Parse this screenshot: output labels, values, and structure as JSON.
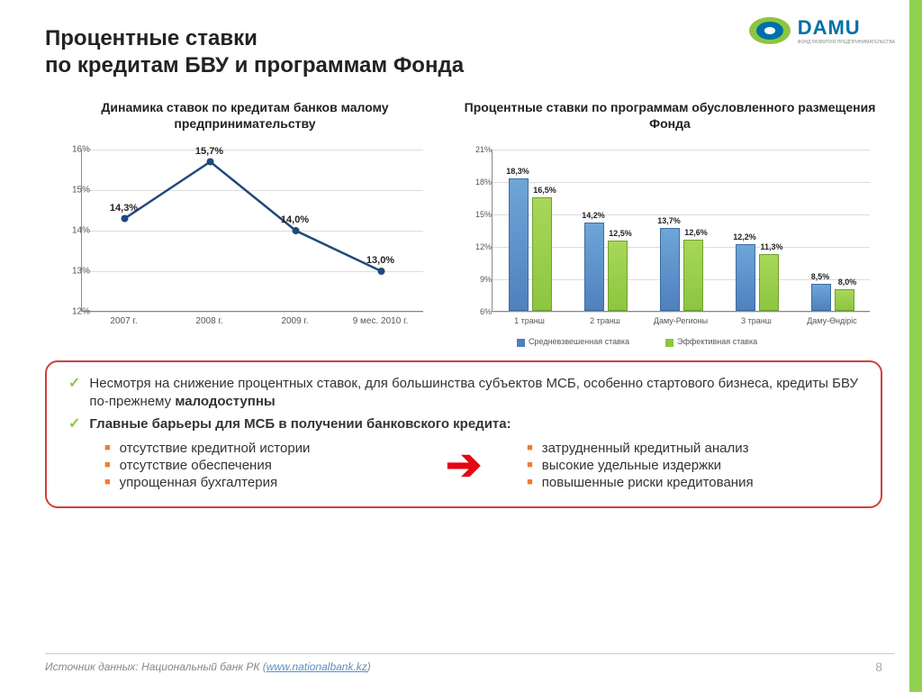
{
  "brand": "DAMU",
  "brand_sub": "ФОНД РАЗВИТИЯ ПРЕДПРИНИМАТЕЛЬСТВА",
  "title_l1": "Процентные ставки",
  "title_l2": "по кредитам БВУ и программам Фонда",
  "line_chart": {
    "title": "Динамика ставок по кредитам банков малому предпринимательству",
    "ymin": 12,
    "ymax": 16,
    "yticks": [
      "12%",
      "13%",
      "14%",
      "15%",
      "16%"
    ],
    "categories": [
      "2007 г.",
      "2008 г.",
      "2009 г.",
      "9 мес. 2010 г."
    ],
    "values": [
      14.3,
      15.7,
      14.0,
      13.0
    ],
    "labels": [
      "14,3%",
      "15,7%",
      "14,0%",
      "13,0%"
    ],
    "color": "#1f497d",
    "grid_color": "#dddddd"
  },
  "bar_chart": {
    "title": "Процентные ставки по программам обусловленного размещения Фонда",
    "ymin": 6,
    "ymax": 21,
    "yticks": [
      "6%",
      "9%",
      "12%",
      "15%",
      "18%",
      "21%"
    ],
    "categories": [
      "1 транш",
      "2 транш",
      "Даму-Регионы",
      "3 транш",
      "Даму-Өндіріс"
    ],
    "series1": {
      "name": "Средневзвешенная ставка",
      "color": "#4f81bd",
      "values": [
        18.3,
        14.2,
        13.7,
        12.2,
        8.5
      ],
      "labels": [
        "18,3%",
        "14,2%",
        "13,7%",
        "12,2%",
        "8,5%"
      ]
    },
    "series2": {
      "name": "Эффективная ставка",
      "color": "#8cc63f",
      "values": [
        16.5,
        12.5,
        12.6,
        11.3,
        8.0
      ],
      "labels": [
        "16,5%",
        "12,5%",
        "12,6%",
        "11,3%",
        "8,0%"
      ]
    }
  },
  "bullet1_a": "Несмотря на снижение процентных ставок, для большинства субъектов МСБ, особенно стартового бизнеса, кредиты БВУ по-прежнему ",
  "bullet1_b": "малодоступны",
  "bullet2": "Главные барьеры для МСБ в получении банковского кредита:",
  "left_items": [
    "отсутствие кредитной истории",
    "отсутствие обеспечения",
    "упрощенная бухгалтерия"
  ],
  "right_items": [
    "затрудненный кредитный анализ",
    "высокие удельные издержки",
    "повышенные риски кредитования"
  ],
  "source_prefix": "Источник данных: Национальный банк РК (",
  "source_link": "www.nationalbank.kz",
  "page_num": "8"
}
